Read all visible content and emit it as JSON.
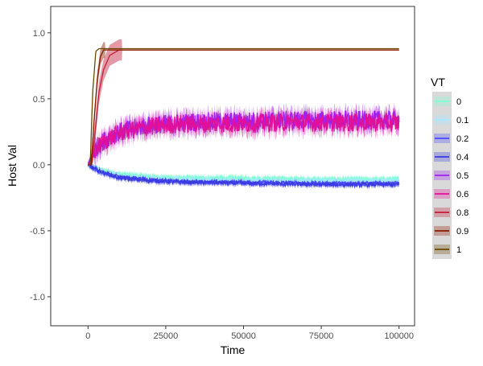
{
  "chart_data": {
    "type": "line",
    "title": "",
    "xlabel": "Time",
    "ylabel": "Host Val",
    "xlim": [
      -12000,
      105000
    ],
    "ylim": [
      -1.22,
      1.2
    ],
    "x_ticks": [
      0,
      25000,
      50000,
      75000,
      100000
    ],
    "x_tick_labels": [
      "0",
      "25000",
      "50000",
      "75000",
      "100000"
    ],
    "y_ticks": [
      1.0,
      0.5,
      0.0,
      -0.5,
      -1.0
    ],
    "y_tick_labels": [
      "1.0",
      "0.5",
      "0.0",
      "-0.5",
      "-1.0"
    ],
    "grid": false,
    "ribbons": true,
    "legend": {
      "title": "VT",
      "position": "right",
      "background": "#d9d9d9"
    },
    "series": [
      {
        "name": "0",
        "color": "#7fffd4",
        "x": [
          0,
          2000,
          5000,
          10000,
          20000,
          30000,
          50000,
          75000,
          100000
        ],
        "y": [
          0.0,
          -0.02,
          -0.05,
          -0.07,
          -0.09,
          -0.1,
          -0.1,
          -0.11,
          -0.11
        ]
      },
      {
        "name": "0.1",
        "color": "#a3e8ff",
        "x": [
          0,
          2000,
          5000,
          10000,
          20000,
          30000,
          50000,
          75000,
          100000
        ],
        "y": [
          0.0,
          -0.02,
          -0.05,
          -0.08,
          -0.1,
          -0.11,
          -0.12,
          -0.12,
          -0.12
        ]
      },
      {
        "name": "0.2",
        "color": "#4a4aff",
        "x": [
          0,
          2000,
          5000,
          10000,
          20000,
          30000,
          50000,
          75000,
          100000
        ],
        "y": [
          0.0,
          -0.03,
          -0.06,
          -0.09,
          -0.11,
          -0.13,
          -0.13,
          -0.14,
          -0.14
        ]
      },
      {
        "name": "0.4",
        "color": "#3a3ae0",
        "x": [
          0,
          2000,
          5000,
          10000,
          20000,
          30000,
          50000,
          75000,
          100000
        ],
        "y": [
          0.0,
          -0.03,
          -0.06,
          -0.1,
          -0.12,
          -0.13,
          -0.14,
          -0.15,
          -0.15
        ]
      },
      {
        "name": "0.5",
        "color": "#a020f0",
        "x": [
          0,
          1500,
          3000,
          6000,
          10000,
          15000,
          20000,
          30000,
          40000,
          50000,
          60000,
          75000,
          100000
        ],
        "y": [
          0.0,
          0.08,
          0.14,
          0.2,
          0.25,
          0.28,
          0.3,
          0.32,
          0.33,
          0.33,
          0.34,
          0.34,
          0.34
        ]
      },
      {
        "name": "0.6",
        "color": "#e0109a",
        "x": [
          0,
          1500,
          3000,
          6000,
          10000,
          15000,
          20000,
          30000,
          40000,
          50000,
          60000,
          75000,
          100000
        ],
        "y": [
          0.0,
          0.07,
          0.13,
          0.19,
          0.24,
          0.27,
          0.29,
          0.31,
          0.31,
          0.31,
          0.32,
          0.32,
          0.32
        ]
      },
      {
        "name": "0.8",
        "color": "#c41e3a",
        "x": [
          0,
          1200,
          2500,
          3500,
          5000,
          7000,
          10000,
          12000,
          100000
        ],
        "y": [
          0.0,
          0.0,
          0.3,
          0.55,
          0.72,
          0.83,
          0.87,
          0.87,
          0.87
        ]
      },
      {
        "name": "0.9",
        "color": "#8b1a00",
        "x": [
          0,
          1000,
          2000,
          3000,
          4000,
          5000,
          6000,
          100000
        ],
        "y": [
          0.0,
          0.0,
          0.35,
          0.65,
          0.82,
          0.87,
          0.87,
          0.87
        ]
      },
      {
        "name": "1",
        "color": "#6b4a00",
        "x": [
          0,
          700,
          1500,
          2500,
          3500,
          100000
        ],
        "y": [
          0.0,
          0.0,
          0.55,
          0.86,
          0.88,
          0.88
        ]
      }
    ]
  }
}
